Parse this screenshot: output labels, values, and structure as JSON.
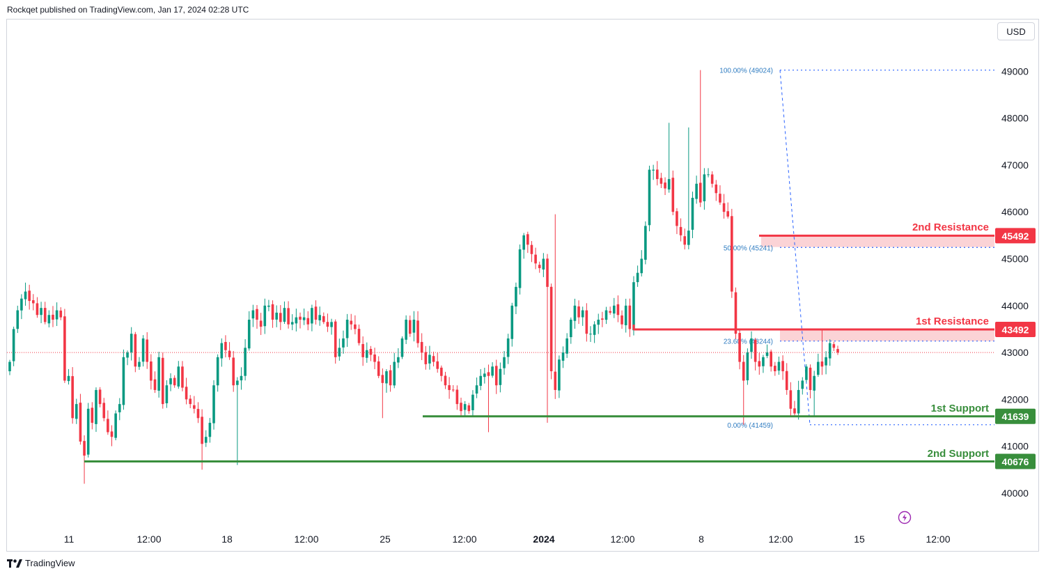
{
  "header": {
    "text": "Rockqet published on TradingView.com, Jan 17, 2024 02:28 UTC"
  },
  "currency_label": "USD",
  "footer": {
    "brand": "TradingView",
    "logo_icon": "tradingview-logo-icon"
  },
  "lightning_icon": "lightning-icon",
  "colors": {
    "up": "#089981",
    "down": "#f23645",
    "resistance": "#f23645",
    "resistance_zone": "#fbd3d6",
    "support": "#388e3c",
    "fib": "#2962ff",
    "grid_text": "#131722",
    "fib_text": "#2f7cc1"
  },
  "chart_data": {
    "type": "candlestick",
    "symbol_quote": "USD",
    "ylim": [
      39700,
      49600
    ],
    "y_ticks": [
      40000,
      41000,
      42000,
      43000,
      44000,
      45000,
      46000,
      47000,
      48000,
      49000
    ],
    "x_ticks": [
      "11",
      "12:00",
      "18",
      "12:00",
      "25",
      "12:00",
      "2024",
      "12:00",
      "8",
      "12:00",
      "15",
      "12:00"
    ],
    "last_price": 43000,
    "levels": [
      {
        "name": "2nd Resistance",
        "value": 45492,
        "label": "45492",
        "kind": "resistance"
      },
      {
        "name": "1st Resistance",
        "value": 43492,
        "label": "43492",
        "kind": "resistance"
      },
      {
        "name": "1st Support",
        "value": 41639,
        "label": "41639",
        "kind": "support"
      },
      {
        "name": "2nd Support",
        "value": 40676,
        "label": "40676",
        "kind": "support"
      }
    ],
    "resistance_zones": [
      [
        45250,
        45492
      ],
      [
        43244,
        43492
      ]
    ],
    "fibonacci": {
      "high": 49024,
      "low": 41459,
      "levels": [
        {
          "label": "100.00% (49024)",
          "value": 49024
        },
        {
          "label": "50.00% (45241)",
          "value": 45241
        },
        {
          "label": "23.60% (43244)",
          "value": 43244
        },
        {
          "label": "0.00% (41459)",
          "value": 41459
        }
      ]
    },
    "close_series": [
      42800,
      43500,
      43900,
      44150,
      44300,
      44100,
      44050,
      43800,
      43950,
      43650,
      43800,
      43700,
      43900,
      43750,
      42400,
      42500,
      41600,
      41900,
      41100,
      40800,
      41800,
      41500,
      42200,
      41900,
      41600,
      41300,
      41200,
      41700,
      41900,
      42900,
      43000,
      43400,
      42700,
      42800,
      43300,
      42800,
      42400,
      42200,
      42900,
      41900,
      42300,
      42450,
      42300,
      42700,
      42250,
      42000,
      41900,
      41800,
      41600,
      41050,
      41200,
      41500,
      42300,
      42900,
      43200,
      43050,
      42900,
      42300,
      42400,
      42500,
      43100,
      43700,
      43900,
      43700,
      43550,
      44000,
      44000,
      43700,
      43850,
      43650,
      43950,
      43600,
      43650,
      43750,
      43700,
      43750,
      43600,
      43950,
      43700,
      43800,
      43650,
      43550,
      43650,
      42900,
      43100,
      43300,
      43700,
      43600,
      43500,
      43200,
      42900,
      43050,
      42950,
      42800,
      42500,
      42350,
      42600,
      42300,
      42800,
      42900,
      43300,
      43700,
      43400,
      43700,
      43200,
      43000,
      42750,
      42950,
      42800,
      42650,
      42500,
      42300,
      42200,
      42200,
      41900,
      41750,
      41900,
      41750,
      42100,
      42300,
      42500,
      42550,
      42500,
      42700,
      42300,
      42650,
      42900,
      43300,
      44000,
      44400,
      45200,
      45500,
      45300,
      45100,
      44900,
      44800,
      45000,
      44400,
      42600,
      42200,
      42850,
      43000,
      43300,
      43700,
      44000,
      43750,
      43900,
      43400,
      43400,
      43600,
      43700,
      43700,
      43900,
      43850,
      44000,
      43800,
      43600,
      44000,
      43500,
      44500,
      44700,
      45000,
      45700,
      46900,
      46900,
      46700,
      46600,
      46500,
      46700,
      46000,
      45700,
      45500,
      45300,
      45600,
      46300,
      46600,
      46200,
      46800,
      46800,
      46600,
      46400,
      46200,
      46000,
      45900,
      44300,
      43400,
      42800,
      42400,
      43000,
      43300,
      42800,
      42700,
      42900,
      43000,
      42700,
      42600,
      42800,
      42600,
      42200,
      41800,
      41700,
      42200,
      42400,
      42700,
      42200,
      42500,
      42800,
      42700,
      42900,
      43200,
      43100,
      43000
    ]
  }
}
